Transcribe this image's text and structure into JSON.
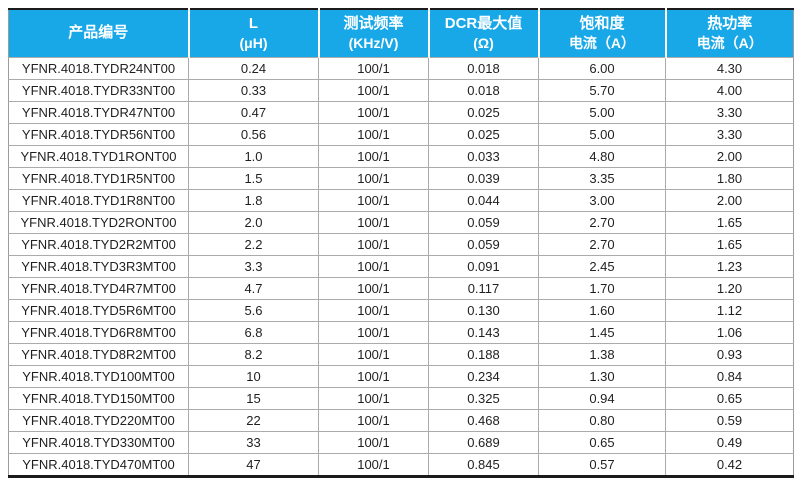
{
  "page": {
    "background_color": "#ffffff",
    "header_bg_color": "#18a8e8",
    "header_text_color": "#ffffff",
    "grid_line_color": "#ababab",
    "outer_border_color": "#1b1b1b"
  },
  "table": {
    "columns": [
      {
        "line1": "产品编号",
        "line2": ""
      },
      {
        "line1": "L",
        "line2": "(μH)"
      },
      {
        "line1": "测试频率",
        "line2": "(KHz/V)"
      },
      {
        "line1": "DCR最大值",
        "line2": "(Ω)"
      },
      {
        "line1": "饱和度",
        "line2": "电流（A）"
      },
      {
        "line1": "热功率",
        "line2": "电流（A）"
      }
    ],
    "rows": [
      [
        "YFNR.4018.TYDR24NT00",
        "0.24",
        "100/1",
        "0.018",
        "6.00",
        "4.30"
      ],
      [
        "YFNR.4018.TYDR33NT00",
        "0.33",
        "100/1",
        "0.018",
        "5.70",
        "4.00"
      ],
      [
        "YFNR.4018.TYDR47NT00",
        "0.47",
        "100/1",
        "0.025",
        "5.00",
        "3.30"
      ],
      [
        "YFNR.4018.TYDR56NT00",
        "0.56",
        "100/1",
        "0.025",
        "5.00",
        "3.30"
      ],
      [
        "YFNR.4018.TYD1RONT00",
        "1.0",
        "100/1",
        "0.033",
        "4.80",
        "2.00"
      ],
      [
        "YFNR.4018.TYD1R5NT00",
        "1.5",
        "100/1",
        "0.039",
        "3.35",
        "1.80"
      ],
      [
        "YFNR.4018.TYD1R8NT00",
        "1.8",
        "100/1",
        "0.044",
        "3.00",
        "2.00"
      ],
      [
        "YFNR.4018.TYD2RONT00",
        "2.0",
        "100/1",
        "0.059",
        "2.70",
        "1.65"
      ],
      [
        "YFNR.4018.TYD2R2MT00",
        "2.2",
        "100/1",
        "0.059",
        "2.70",
        "1.65"
      ],
      [
        "YFNR.4018.TYD3R3MT00",
        "3.3",
        "100/1",
        "0.091",
        "2.45",
        "1.23"
      ],
      [
        "YFNR.4018.TYD4R7MT00",
        "4.7",
        "100/1",
        "0.117",
        "1.70",
        "1.20"
      ],
      [
        "YFNR.4018.TYD5R6MT00",
        "5.6",
        "100/1",
        "0.130",
        "1.60",
        "1.12"
      ],
      [
        "YFNR.4018.TYD6R8MT00",
        "6.8",
        "100/1",
        "0.143",
        "1.45",
        "1.06"
      ],
      [
        "YFNR.4018.TYD8R2MT00",
        "8.2",
        "100/1",
        "0.188",
        "1.38",
        "0.93"
      ],
      [
        "YFNR.4018.TYD100MT00",
        "10",
        "100/1",
        "0.234",
        "1.30",
        "0.84"
      ],
      [
        "YFNR.4018.TYD150MT00",
        "15",
        "100/1",
        "0.325",
        "0.94",
        "0.65"
      ],
      [
        "YFNR.4018.TYD220MT00",
        "22",
        "100/1",
        "0.468",
        "0.80",
        "0.59"
      ],
      [
        "YFNR.4018.TYD330MT00",
        "33",
        "100/1",
        "0.689",
        "0.65",
        "0.49"
      ],
      [
        "YFNR.4018.TYD470MT00",
        "47",
        "100/1",
        "0.845",
        "0.57",
        "0.42"
      ]
    ]
  }
}
